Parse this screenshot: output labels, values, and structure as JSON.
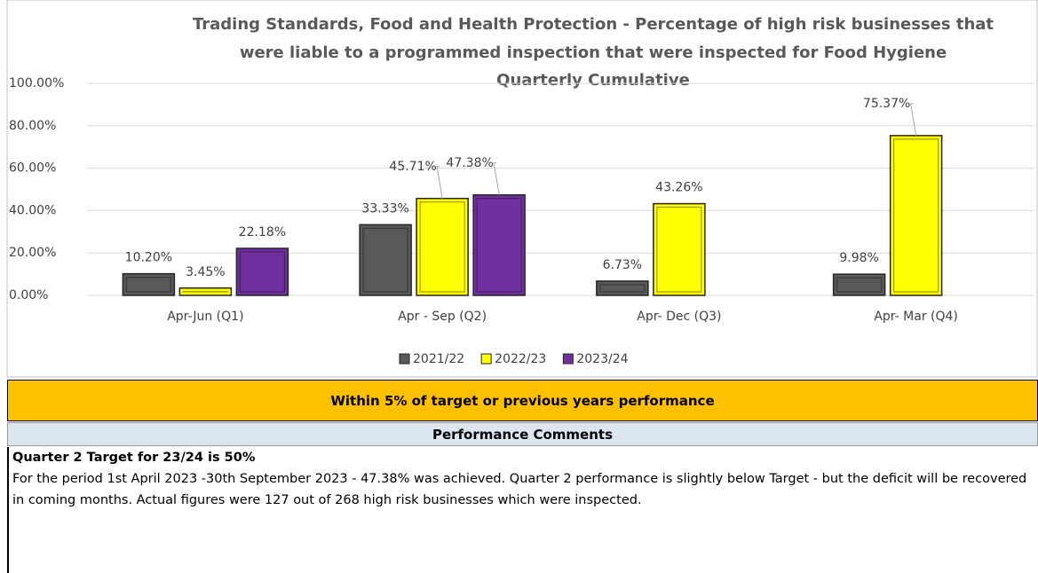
{
  "chart_data": {
    "type": "bar",
    "title": [
      "Trading Standards, Food and Health Protection - Percentage of high risk businesses that",
      "were liable to a programmed inspection that were inspected for Food Hygiene"
    ],
    "subtitle": "Quarterly Cumulative",
    "categories": [
      "Apr-Jun  (Q1)",
      "Apr - Sep  (Q2)",
      "Apr- Dec  (Q3)",
      "Apr- Mar  (Q4)"
    ],
    "series": [
      {
        "name": "2021/22",
        "color": "#595959",
        "values": [
          10.2,
          33.33,
          6.73,
          9.98
        ],
        "value_labels": [
          "10.20%",
          "33.33%",
          "6.73%",
          "9.98%"
        ]
      },
      {
        "name": "2022/23",
        "color": "#ffff00",
        "values": [
          3.45,
          45.71,
          43.26,
          75.37
        ],
        "value_labels": [
          "3.45%",
          "45.71%",
          "43.26%",
          "75.37%"
        ]
      },
      {
        "name": "2023/24",
        "color": "#7030a0",
        "values": [
          22.18,
          47.38,
          null,
          null
        ],
        "value_labels": [
          "22.18%",
          "47.38%",
          null,
          null
        ]
      }
    ],
    "ylim": [
      0,
      100
    ],
    "yticks": [
      {
        "value": 0,
        "label": "0.00%"
      },
      {
        "value": 20,
        "label": "20.00%"
      },
      {
        "value": 40,
        "label": "40.00%"
      },
      {
        "value": 60,
        "label": "60.00%"
      },
      {
        "value": 80,
        "label": "80.00%"
      },
      {
        "value": 100,
        "label": "100.00%"
      }
    ],
    "grid": true,
    "legend": "bottom"
  },
  "status": "Within 5% of target or previous years performance",
  "comments": {
    "heading": "Performance Comments",
    "title": "Quarter 2 Target for 23/24 is 50%",
    "text": "For the period 1st April 2023 -30th September 2023 - 47.38% was achieved. Quarter 2 performance is slightly below Target - but the deficit will be recovered in coming months. Actual figures were 127 out of 268 high risk businesses which were inspected."
  }
}
